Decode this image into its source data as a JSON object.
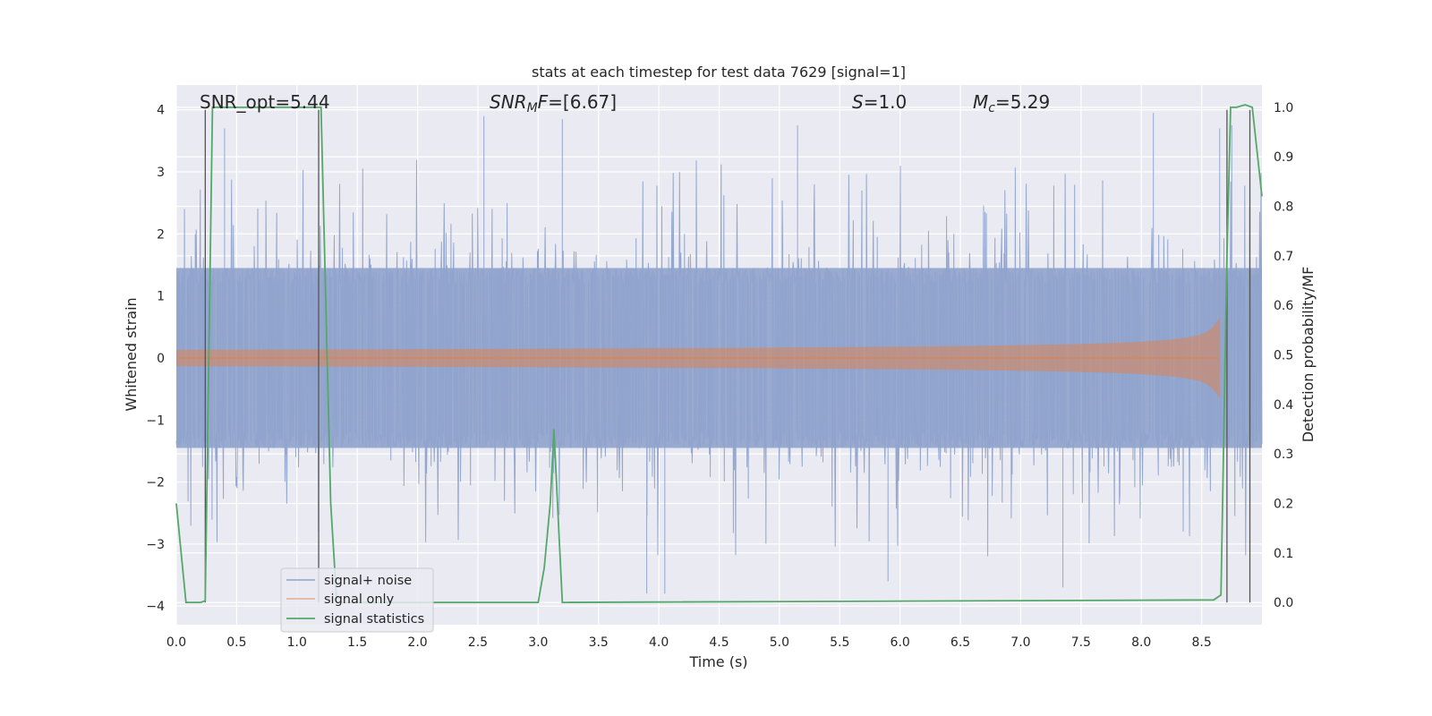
{
  "chart_data": {
    "type": "line",
    "title": "stats at each timestep for test data 7629 [signal=1]",
    "xlabel": "Time (s)",
    "ylabel": "Whitened strain",
    "ylabel_right": "Detection probability/MF",
    "xlim": [
      0.0,
      9.0
    ],
    "ylim": [
      -4.3,
      4.4
    ],
    "ylim_right": [
      -0.045,
      1.045
    ],
    "x_ticks": [
      "0.0",
      "0.5",
      "1.0",
      "1.5",
      "2.0",
      "2.5",
      "3.0",
      "3.5",
      "4.0",
      "4.5",
      "5.0",
      "5.5",
      "6.0",
      "6.5",
      "7.0",
      "7.5",
      "8.0",
      "8.5"
    ],
    "y_ticks": [
      "4",
      "3",
      "2",
      "1",
      "0",
      "−1",
      "−2",
      "−3",
      "−4"
    ],
    "y_right_ticks": [
      "1.0",
      "0.9",
      "0.8",
      "0.7",
      "0.6",
      "0.5",
      "0.4",
      "0.3",
      "0.2",
      "0.1",
      "0.0"
    ],
    "grid": true,
    "legend_position": "lower-left",
    "annotations": {
      "snr_opt": "SNR_opt=5.44",
      "snr_mf": "=[6.67]",
      "snr_mf_base": "SNR",
      "snr_mf_sub": "M",
      "snr_mf_tail": "F",
      "s_sym": "S",
      "s_val": "=1.0",
      "mc_sym": "M",
      "mc_sub": "c",
      "mc_val": "=5.29"
    },
    "series": [
      {
        "name": "signal+ noise",
        "color": "#8fa3cc",
        "description_hint": "noisy whitened strain, approx ±1.4 band with spikes to ±3.9",
        "band": [
          -1.45,
          1.45
        ],
        "peak_spikes": [
          [
            0.4,
            3.7
          ],
          [
            2.55,
            3.9
          ],
          [
            3.2,
            3.85
          ],
          [
            3.9,
            -3.8
          ],
          [
            4.05,
            -3.8
          ],
          [
            5.15,
            3.75
          ],
          [
            5.9,
            -3.6
          ],
          [
            7.35,
            -3.7
          ],
          [
            8.1,
            3.95
          ],
          [
            8.65,
            3.7
          ],
          [
            8.75,
            3.75
          ]
        ]
      },
      {
        "name": "signal only",
        "color": "#dd8452",
        "chirp_end": 8.65,
        "chirp_peak_amplitude": 0.65
      },
      {
        "name": "signal statistics",
        "color": "#55a868",
        "axis": "right",
        "x": [
          0.0,
          0.08,
          0.2,
          0.24,
          0.3,
          1.2,
          1.28,
          1.33,
          2.3,
          3.0,
          3.05,
          3.1,
          3.13,
          3.16,
          3.2,
          8.6,
          8.66,
          8.71,
          8.74,
          8.79,
          8.86,
          8.92,
          9.0
        ],
        "y": [
          0.2,
          0.0,
          0.0,
          0.003,
          1.0,
          1.0,
          0.2,
          0.0,
          0.0,
          0.0,
          0.07,
          0.2,
          0.35,
          0.2,
          0.0,
          0.005,
          0.015,
          0.7,
          1.0,
          1.0,
          1.005,
          1.0,
          0.82
        ]
      }
    ],
    "vertical_markers": [
      0.24,
      1.18,
      8.71,
      8.9
    ]
  }
}
